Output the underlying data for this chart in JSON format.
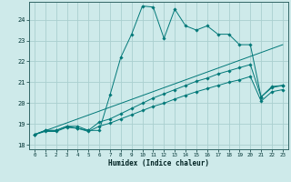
{
  "xlabel": "Humidex (Indice chaleur)",
  "background_color": "#ceeaea",
  "grid_color": "#aacfcf",
  "line_color": "#007878",
  "xlim": [
    -0.5,
    23.5
  ],
  "ylim": [
    17.8,
    24.85
  ],
  "yticks": [
    18,
    19,
    20,
    21,
    22,
    23,
    24
  ],
  "xticks": [
    0,
    1,
    2,
    3,
    4,
    5,
    6,
    7,
    8,
    9,
    10,
    11,
    12,
    13,
    14,
    15,
    16,
    17,
    18,
    19,
    20,
    21,
    22,
    23
  ],
  "series": [
    {
      "x": [
        0,
        1,
        2,
        3,
        4,
        5,
        6,
        7,
        8,
        9,
        10,
        11,
        12,
        13,
        14,
        15,
        16,
        17,
        18,
        19,
        20,
        21,
        22,
        23
      ],
      "y": [
        18.5,
        18.7,
        18.7,
        18.9,
        18.9,
        18.7,
        18.7,
        20.4,
        22.2,
        23.3,
        24.65,
        24.6,
        23.1,
        24.5,
        23.7,
        23.5,
        23.7,
        23.3,
        23.3,
        22.8,
        22.8,
        20.3,
        20.8,
        20.85
      ],
      "marker": true
    },
    {
      "x": [
        0,
        23
      ],
      "y": [
        18.5,
        22.8
      ],
      "marker": false
    },
    {
      "x": [
        0,
        1,
        2,
        3,
        4,
        5,
        6,
        7,
        8,
        9,
        10,
        11,
        12,
        13,
        14,
        15,
        16,
        17,
        18,
        19,
        20,
        21,
        22,
        23
      ],
      "y": [
        18.5,
        18.7,
        18.7,
        18.9,
        18.8,
        18.7,
        19.1,
        19.25,
        19.5,
        19.75,
        20.0,
        20.25,
        20.45,
        20.65,
        20.85,
        21.05,
        21.2,
        21.4,
        21.55,
        21.7,
        21.85,
        20.3,
        20.75,
        20.85
      ],
      "marker": true
    },
    {
      "x": [
        0,
        1,
        2,
        3,
        4,
        5,
        6,
        7,
        8,
        9,
        10,
        11,
        12,
        13,
        14,
        15,
        16,
        17,
        18,
        19,
        20,
        21,
        22,
        23
      ],
      "y": [
        18.5,
        18.65,
        18.65,
        18.85,
        18.8,
        18.65,
        18.9,
        19.05,
        19.25,
        19.45,
        19.65,
        19.85,
        20.0,
        20.2,
        20.38,
        20.55,
        20.7,
        20.85,
        21.0,
        21.12,
        21.28,
        20.1,
        20.55,
        20.65
      ],
      "marker": true
    }
  ]
}
